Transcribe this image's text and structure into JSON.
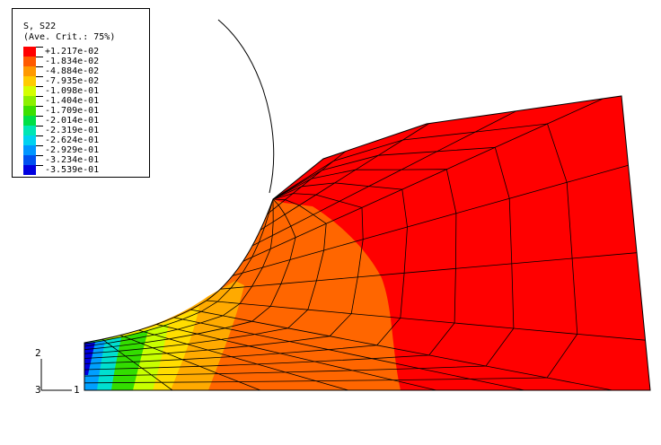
{
  "legend": {
    "variable": "S, S22",
    "averaging": "(Ave. Crit.: 75%)",
    "entries": [
      {
        "label": "+1.217e-02",
        "color": "#ff0000"
      },
      {
        "label": "-1.834e-02",
        "color": "#ff5a00"
      },
      {
        "label": "-4.884e-02",
        "color": "#ff9900"
      },
      {
        "label": "-7.935e-02",
        "color": "#ffcc00"
      },
      {
        "label": "-1.098e-01",
        "color": "#d4ff00"
      },
      {
        "label": "-1.404e-01",
        "color": "#8cf000"
      },
      {
        "label": "-1.709e-01",
        "color": "#3ce000"
      },
      {
        "label": "-2.014e-01",
        "color": "#00e046"
      },
      {
        "label": "-2.319e-01",
        "color": "#00e6b4"
      },
      {
        "label": "-2.624e-01",
        "color": "#00d2f0"
      },
      {
        "label": "-2.929e-01",
        "color": "#0096ff"
      },
      {
        "label": "-3.234e-01",
        "color": "#0050f0"
      },
      {
        "label": "-3.539e-01",
        "color": "#0000e0"
      }
    ]
  },
  "triad": {
    "axis_1": "1",
    "axis_2": "2",
    "axis_3": "3"
  },
  "colors": {
    "max_stress": "#ff0000",
    "high_stress": "#ff6600",
    "mid_stress": "#ffaa00",
    "min_stress": "#0000e0"
  }
}
